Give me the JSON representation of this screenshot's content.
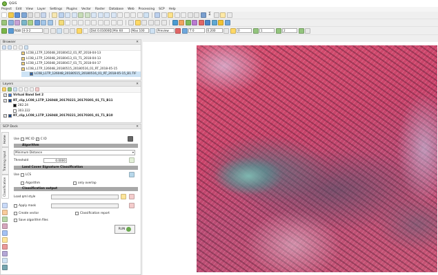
{
  "window": {
    "title": "QGIS"
  },
  "menu": [
    "Project",
    "Edit",
    "View",
    "Layer",
    "Settings",
    "Plugins",
    "Vector",
    "Raster",
    "Database",
    "Web",
    "Processing",
    "SCP",
    "Help"
  ],
  "toolbar3": {
    "rgb_value": "4-3-2",
    "band_set_label": "RGB",
    "dist_field": "Dist 0.010000",
    "min_field": "Min 60",
    "max_field": "Max 100",
    "preview_label": "Preview",
    "t_field": "T 0",
    "s_field": "0.200",
    "n1": "0",
    "n2": "1",
    "n3": "2"
  },
  "browser": {
    "title": "Browser",
    "items": [
      "LC08_L1TP_126048_20180412_01_RT_2018-04-13",
      "LC08_L1TP_126048_20180413_01_T1_2018-04-13",
      "LC08_L1TP_126048_20180417_01_T1_2018-04-17",
      "LC08_L1TP_126048_20180515_20180516_01_RT_2018-05-15",
      "LC08_L1TP_126048_20180515_20180516_01_RT_2018-05-15_B1.TIF"
    ]
  },
  "layers": {
    "title": "Layers",
    "items": [
      {
        "name": "Virtual Band Set 2",
        "bold": true
      },
      {
        "name": "RT_clip_LC08_L1TP_126048_20170221_20170301_01_T1_B11",
        "bold": true
      },
      {
        "name": "282.24",
        "bold": false
      },
      {
        "name": "303.222",
        "bold": false
      },
      {
        "name": "RT_clip_LC08_L1TP_126048_20170221_20170301_01_T1_B10",
        "bold": true
      }
    ]
  },
  "scp": {
    "title": "SCP Dock",
    "tabs": [
      "Home",
      "Training input",
      "Classification"
    ],
    "use_label": "Use",
    "mc_id": "MC ID",
    "c_id": "C ID",
    "algorithm_header": "Algorithm",
    "algorithm_value": "Minimum Distance",
    "threshold_label": "Threshold",
    "threshold_value": "0.0000",
    "lcs_header": "Land Cover Signature Classification",
    "lcs_use": "Use",
    "lcs_label": "LCS",
    "algorithm_cb": "Algorithm",
    "only_overlap": "only overlap",
    "output_header": "Classification output",
    "load_qml": "Load qml style",
    "apply_mask": "Apply mask",
    "create_vector": "Create vector",
    "classification_report": "Classification report",
    "save_algorithm_files": "Save algorithm files",
    "run": "RUN"
  }
}
